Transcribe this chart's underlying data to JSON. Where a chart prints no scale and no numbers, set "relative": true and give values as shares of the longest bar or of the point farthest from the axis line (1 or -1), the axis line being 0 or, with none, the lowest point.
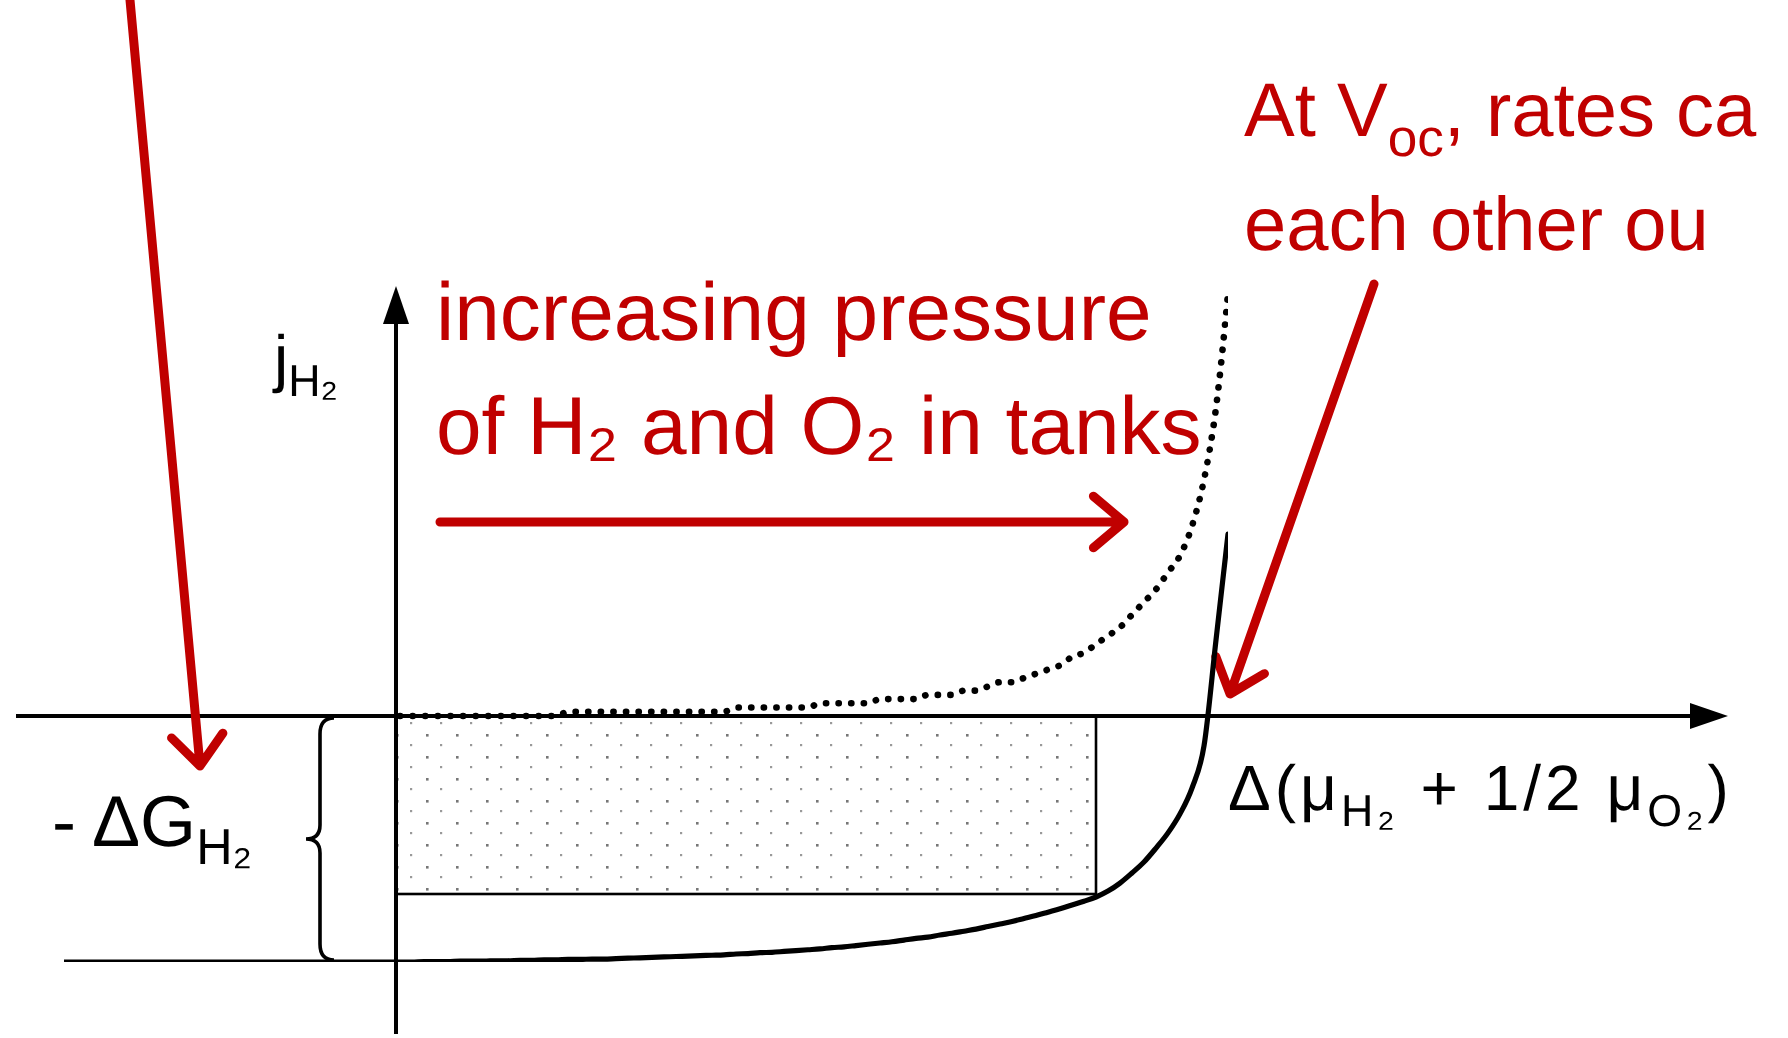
{
  "chart_data": {
    "type": "line",
    "relative": true,
    "xlabel": "Δ(μ$_{H₂}$ + 1/2 μ$_{O₂}$)",
    "ylabel": "j$_{H₂}$",
    "annotations": [
      "increasing pressure of H₂ and O₂ in tanks",
      "At V$_{oc}$, rates ca each other ou",
      "- ΔG$_{H₂}$"
    ],
    "categories": [
      null,
      null,
      null,
      null,
      null,
      null,
      null,
      null,
      null,
      null,
      null,
      null,
      null,
      null,
      null,
      null,
      null,
      null,
      null,
      null,
      null,
      null,
      null,
      null,
      null,
      null,
      null,
      null,
      null,
      null,
      null,
      null,
      null,
      null,
      null,
      null,
      null,
      null,
      null,
      null,
      null,
      null,
      null,
      null,
      null,
      null,
      null,
      null,
      null,
      null,
      null,
      null,
      null,
      null,
      null,
      null,
      null,
      null,
      null,
      null,
      null,
      null,
      null,
      null,
      null,
      null,
      null,
      null,
      null,
      null,
      null,
      null,
      null,
      null,
      null,
      null,
      null,
      null,
      null,
      null,
      null,
      null,
      null,
      null,
      null,
      null,
      null,
      null,
      null,
      null,
      null,
      null,
      null,
      null,
      null,
      null,
      null,
      null
    ],
    "series": [
      {
        "color": "#000000",
        "line_style": "dotted",
        "values": [
          null,
          null,
          null,
          null,
          null,
          null,
          null,
          null,
          null,
          null,
          null,
          null,
          null,
          null,
          null,
          null,
          null,
          null,
          null,
          null,
          null,
          null,
          null,
          null,
          null,
          null,
          null,
          null,
          0,
          0,
          0,
          0,
          0,
          0,
          0,
          0,
          0,
          0,
          0,
          0,
          0,
          0,
          0.01,
          0.01,
          0.01,
          0.01,
          0.01,
          0.01,
          0.01,
          0.01,
          0.01,
          0.01,
          0.01,
          0.01,
          0.01,
          0.01,
          0.02,
          0.02,
          0.02,
          0.02,
          0.02,
          0.02,
          0.02,
          0.03,
          0.03,
          0.03,
          0.03,
          0.03,
          0.04,
          0.04,
          0.04,
          0.04,
          0.05,
          0.05,
          0.05,
          0.06,
          0.06,
          0.07,
          0.08,
          0.08,
          0.09,
          0.1,
          0.11,
          0.12,
          0.14,
          0.15,
          0.17,
          0.19,
          0.21,
          0.24,
          0.27,
          0.3,
          0.34,
          0.38,
          0.45,
          0.56,
          0.73,
          1
        ]
      },
      {
        "color": "#000000",
        "line_style": "solid",
        "values": [
          -0.583,
          -0.583,
          -0.583,
          -0.583,
          -0.583,
          -0.583,
          -0.583,
          -0.583,
          -0.583,
          -0.583,
          -0.583,
          -0.583,
          -0.583,
          -0.583,
          -0.583,
          -0.583,
          -0.583,
          -0.583,
          -0.583,
          -0.583,
          -0.583,
          -0.583,
          -0.583,
          -0.583,
          -0.583,
          -0.583,
          -0.583,
          -0.583,
          -0.583,
          -0.583,
          -0.582,
          -0.582,
          -0.582,
          -0.581,
          -0.581,
          -0.581,
          -0.58,
          -0.58,
          -0.579,
          -0.579,
          -0.578,
          -0.578,
          -0.577,
          -0.577,
          -0.576,
          -0.576,
          -0.575,
          -0.574,
          -0.573,
          -0.572,
          -0.571,
          -0.57,
          -0.569,
          -0.568,
          -0.567,
          -0.566,
          -0.564,
          -0.563,
          -0.561,
          -0.56,
          -0.558,
          -0.556,
          -0.554,
          -0.552,
          -0.549,
          -0.547,
          -0.544,
          -0.541,
          -0.538,
          -0.535,
          -0.531,
          -0.527,
          -0.524,
          -0.519,
          -0.515,
          -0.51,
          -0.505,
          -0.499,
          -0.493,
          -0.487,
          -0.48,
          -0.473,
          -0.465,
          -0.457,
          -0.448,
          -0.439,
          -0.429,
          -0.415,
          -0.396,
          -0.372,
          -0.346,
          -0.313,
          -0.277,
          -0.232,
          -0.171,
          -0.071,
          0.18,
          0.431
        ]
      }
    ]
  }
}
